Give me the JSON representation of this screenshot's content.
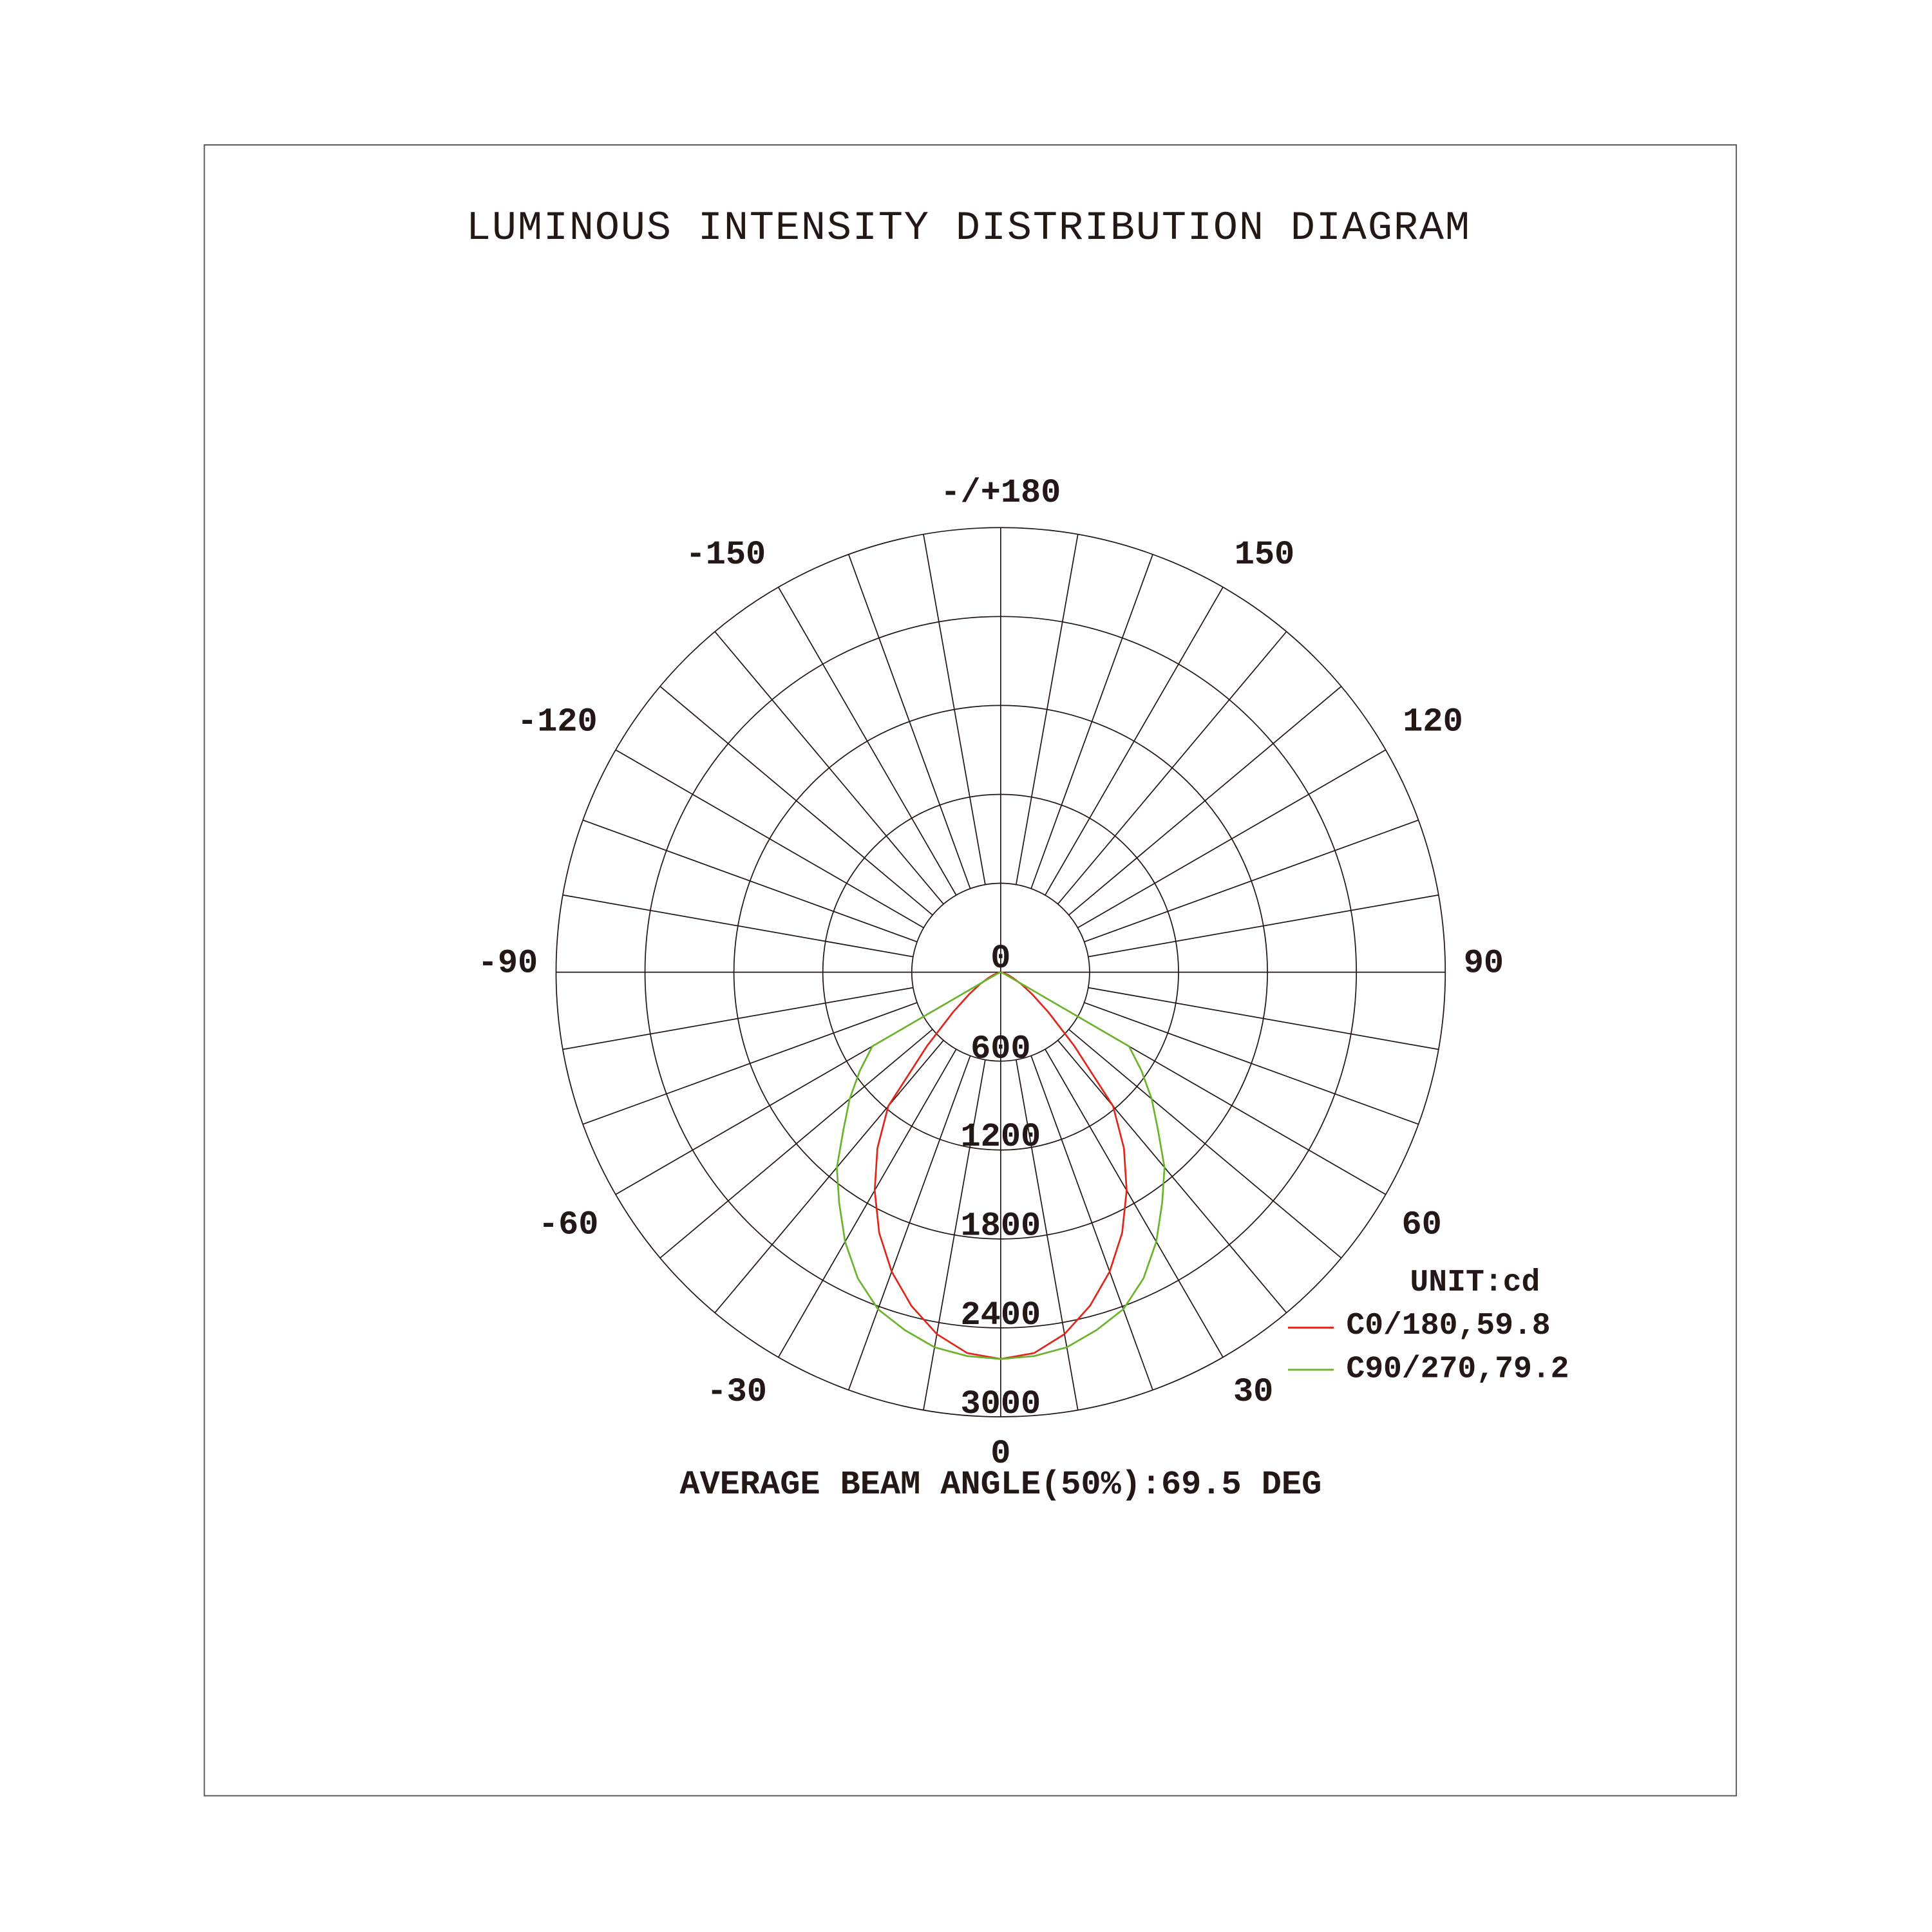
{
  "chart_data": {
    "type": "polar",
    "title": "LUMINOUS INTENSITY DISTRIBUTION DIAGRAM",
    "unit_label": "UNIT:cd",
    "footer": "AVERAGE BEAM ANGLE(50%):69.5 DEG",
    "radial_range": [
      0,
      3000
    ],
    "radial_ticks": [
      "0",
      "600",
      "1200",
      "1800",
      "2400",
      "3000"
    ],
    "angle_labels": {
      "top": "-/+180",
      "m150": "-150",
      "p150": "150",
      "m120": "-120",
      "p120": "120",
      "m90": "-90",
      "p90": "90",
      "m60": "-60",
      "p60": "60",
      "m30": "-30",
      "p30": "30",
      "bottom": "0"
    },
    "grid": true,
    "spoke_step_deg": 10,
    "legend_placement": "bottom-right",
    "angles": [
      -90,
      -85,
      -80,
      -75,
      -70,
      -65,
      -60,
      -55,
      -50,
      -45,
      -40,
      -35,
      -30,
      -25,
      -20,
      -15,
      -10,
      -5,
      0,
      5,
      10,
      15,
      20,
      25,
      30,
      35,
      40,
      45,
      50,
      55,
      60,
      65,
      70,
      75,
      80,
      85,
      90
    ],
    "series": [
      {
        "name": "C0/180,59.8",
        "color": "#e0261b",
        "values": [
          0,
          0,
          10,
          20,
          50,
          90,
          160,
          260,
          420,
          700,
          1180,
          1450,
          1700,
          1940,
          2150,
          2330,
          2480,
          2580,
          2610,
          2580,
          2480,
          2330,
          2150,
          1940,
          1700,
          1450,
          1180,
          700,
          420,
          260,
          160,
          90,
          50,
          20,
          10,
          0,
          0
        ]
      },
      {
        "name": "C90/270,79.2",
        "color": "#6ab42d",
        "values": [
          0,
          0,
          0,
          0,
          10,
          30,
          1000,
          1160,
          1330,
          1500,
          1720,
          1900,
          2100,
          2280,
          2420,
          2500,
          2570,
          2600,
          2610,
          2600,
          2570,
          2500,
          2420,
          2280,
          2100,
          1900,
          1720,
          1500,
          1330,
          1160,
          1000,
          30,
          10,
          0,
          0,
          0,
          0
        ]
      }
    ]
  }
}
